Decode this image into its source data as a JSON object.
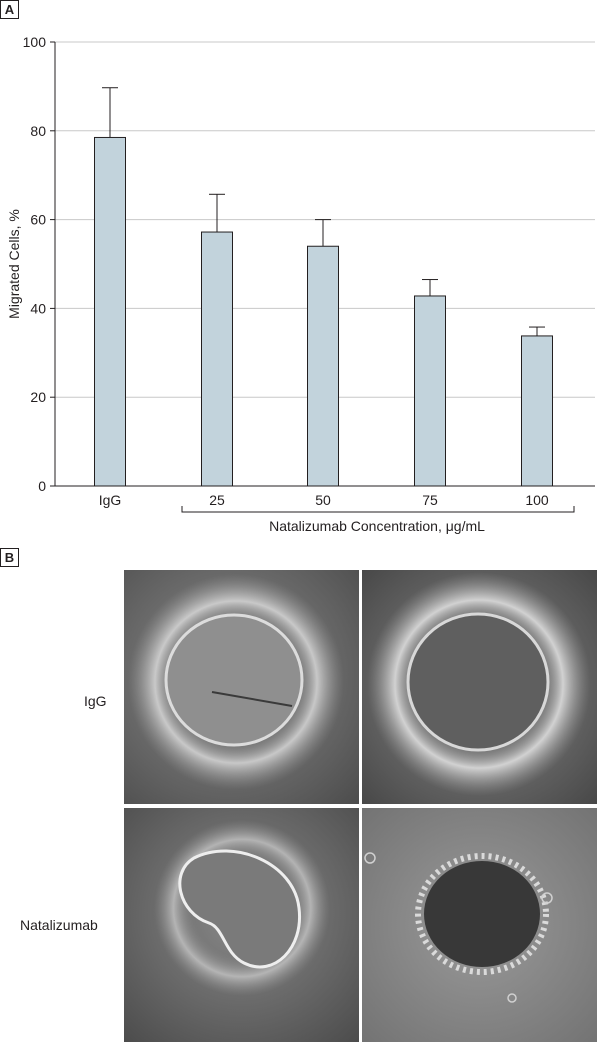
{
  "panels": {
    "a": "A",
    "b": "B"
  },
  "chart_data": {
    "type": "bar",
    "categories": [
      "IgG",
      "25",
      "50",
      "75",
      "100"
    ],
    "values": [
      78.5,
      57.2,
      54.0,
      42.8,
      33.8
    ],
    "error_upper": [
      89.7,
      65.7,
      60.0,
      46.5,
      35.8
    ],
    "title": "",
    "xlabel": "Natalizumab Concentration, μg/mL",
    "ylabel": "Migrated Cells, %",
    "ylim": [
      0,
      100
    ],
    "yticks": [
      0,
      20,
      40,
      60,
      80,
      100
    ],
    "grid": true,
    "bar_color": "#c2d3dc",
    "bracket_group": [
      "25",
      "50",
      "75",
      "100"
    ]
  },
  "micrographs": {
    "row_labels": [
      "IgG",
      "Natalizumab"
    ]
  }
}
